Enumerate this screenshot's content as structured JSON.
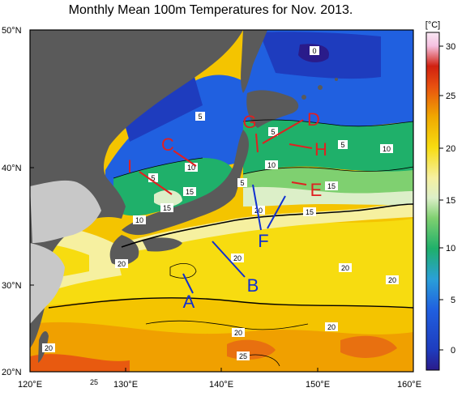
{
  "title": "Monthly Mean 100m Temperatures for Nov. 2013.",
  "colorbar": {
    "unit": "[°C]",
    "ticks": [
      "30",
      "25",
      "20",
      "15",
      "10",
      "5",
      "0"
    ],
    "stops": [
      {
        "value": -2,
        "color": "#2a1b8a"
      },
      {
        "value": 0,
        "color": "#1e3cbe"
      },
      {
        "value": 4,
        "color": "#2060e0"
      },
      {
        "value": 7,
        "color": "#2aa0d8"
      },
      {
        "value": 10,
        "color": "#1fb06a"
      },
      {
        "value": 13,
        "color": "#7fd070"
      },
      {
        "value": 15,
        "color": "#dcefc8"
      },
      {
        "value": 17,
        "color": "#f6f0a0"
      },
      {
        "value": 20,
        "color": "#f7dc10"
      },
      {
        "value": 23,
        "color": "#f0a800"
      },
      {
        "value": 26,
        "color": "#e85010"
      },
      {
        "value": 28,
        "color": "#d02010"
      },
      {
        "value": 30,
        "color": "#f5c0e0"
      },
      {
        "value": 31,
        "color": "#f8e8f4"
      }
    ]
  },
  "axes": {
    "lat_labels": [
      "50°N",
      "40°N",
      "30°N",
      "20°N"
    ],
    "lon_labels": [
      "120°E",
      "130°E",
      "140°E",
      "150°E",
      "160°E"
    ]
  },
  "contour_labels": [
    "0",
    "5",
    "5",
    "5",
    "5",
    "5",
    "10",
    "10",
    "10",
    "10",
    "15",
    "15",
    "15",
    "15",
    "20",
    "20",
    "20",
    "20",
    "20",
    "20",
    "20",
    "20",
    "25",
    "25"
  ],
  "markers": {
    "blue": [
      "A",
      "B",
      "F"
    ],
    "red": [
      "C",
      "D",
      "E",
      "G",
      "H",
      "I"
    ]
  },
  "colors": {
    "land": "#5a5a5a",
    "land_light": "#c8c8c8",
    "blue_marker": "#1030d0",
    "red_marker": "#e02020"
  }
}
